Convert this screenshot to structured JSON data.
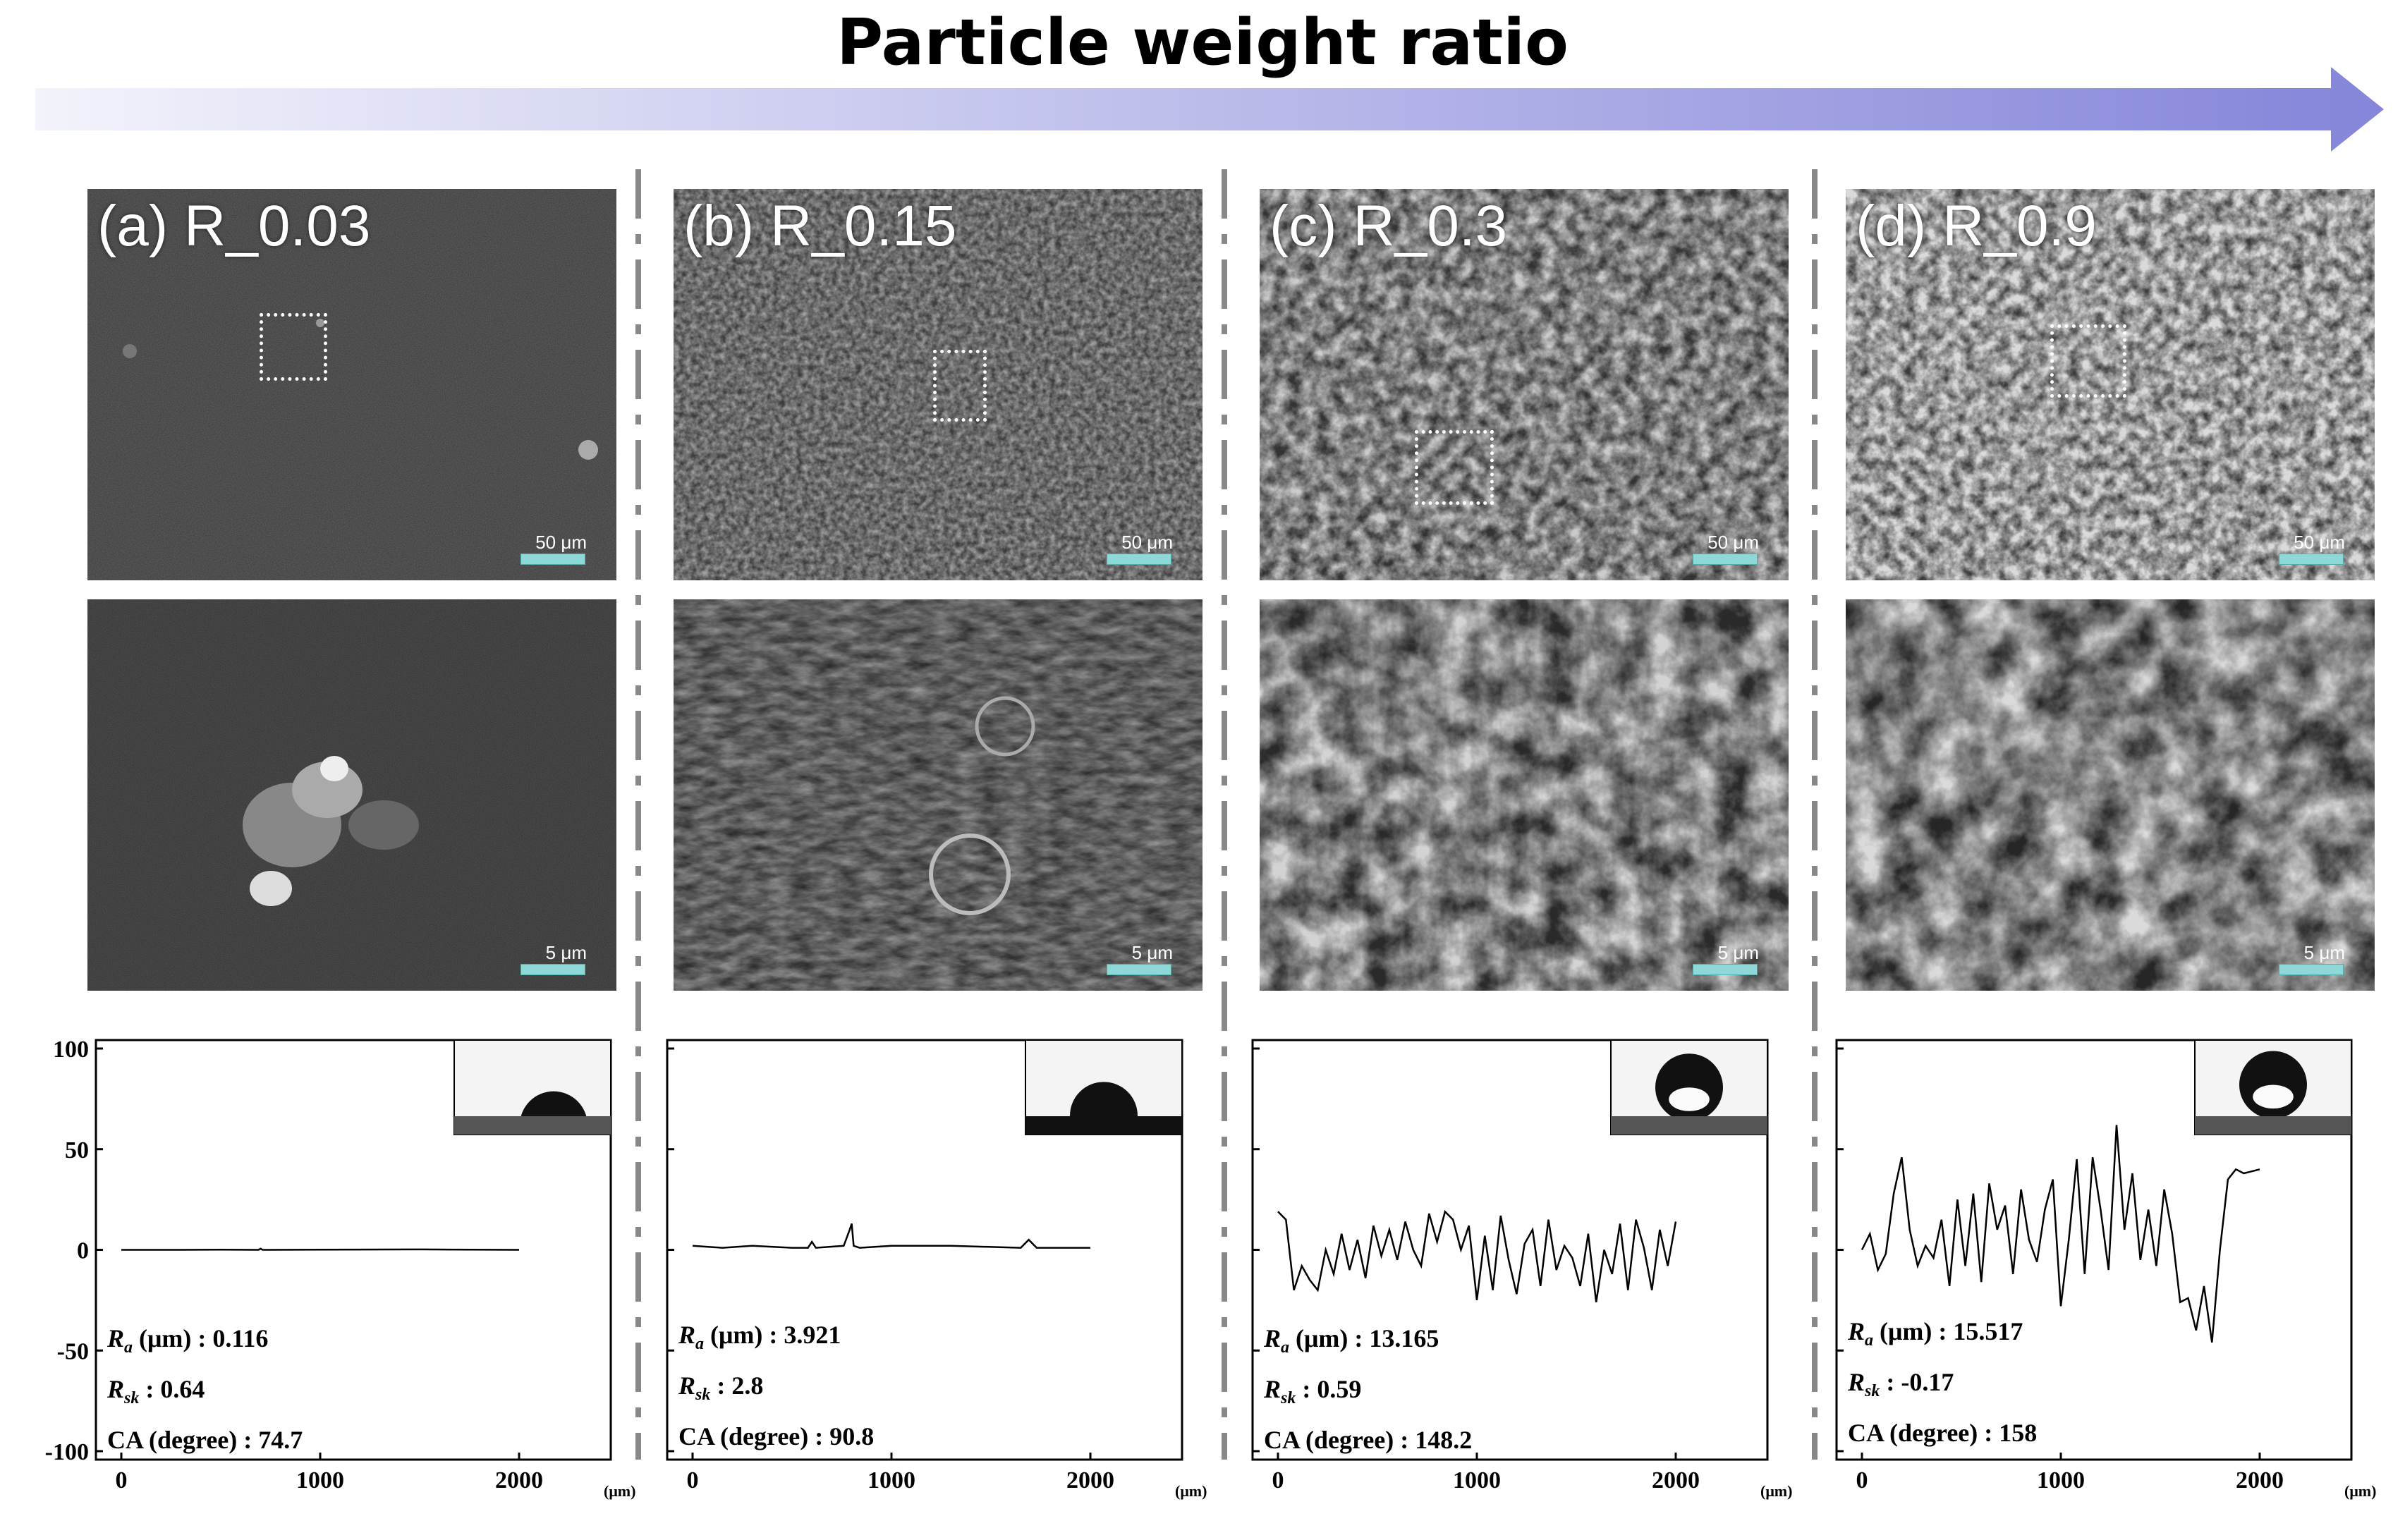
{
  "header": {
    "title": "Particle weight ratio"
  },
  "columns": [
    {
      "label": "(a) R_0.03",
      "scale_top": "50 μm",
      "scale_bottom": "5 μm",
      "ra": "0.116",
      "rsk": "0.64",
      "ca": "74.7"
    },
    {
      "label": "(b) R_0.15",
      "scale_top": "50 μm",
      "scale_bottom": "5 μm",
      "ra": "3.921",
      "rsk": "2.8",
      "ca": "90.8"
    },
    {
      "label": "(c) R_0.3",
      "scale_top": "50 μm",
      "scale_bottom": "5 μm",
      "ra": "13.165",
      "rsk": "0.59",
      "ca": "148.2"
    },
    {
      "label": "(d) R_0.9",
      "scale_top": "50 μm",
      "scale_bottom": "5 μm",
      "ra": "15.517",
      "rsk": "-0.17",
      "ca": "158"
    }
  ],
  "stats_labels": {
    "ra": "R",
    "ra_sub": "a",
    "ra_unit": " (μm) : ",
    "rsk": "R",
    "rsk_sub": "sk",
    "rsk_sep": " : ",
    "ca": "CA (degree) : "
  },
  "colors": {
    "arrow_start": "#eef0fb",
    "arrow_end": "#8888dd",
    "separator": "#888888",
    "scale_bar": "#8fd8d8"
  },
  "chart_data": [
    {
      "type": "line",
      "title": "",
      "xlabel": "",
      "ylabel": "",
      "x_unit": "(μm)",
      "xlim": [
        0,
        2000
      ],
      "ylim": [
        -100,
        100
      ],
      "xticks": [
        "0",
        "1000",
        "2000"
      ],
      "yticks": [
        "100",
        "50",
        "0",
        "-50",
        "-100"
      ],
      "series": [
        {
          "x": [
            0,
            250,
            500,
            690,
            700,
            710,
            1000,
            1500,
            2000
          ],
          "y": [
            0,
            0,
            0.1,
            0,
            0.6,
            0,
            0.1,
            0.2,
            0
          ]
        }
      ]
    },
    {
      "type": "line",
      "title": "",
      "xlabel": "",
      "ylabel": "",
      "x_unit": "(μm)",
      "xlim": [
        0,
        2000
      ],
      "ylim": [
        -100,
        100
      ],
      "xticks": [
        "0",
        "1000",
        "2000"
      ],
      "series": [
        {
          "x": [
            0,
            150,
            300,
            500,
            580,
            600,
            620,
            760,
            790,
            800,
            810,
            840,
            1000,
            1300,
            1650,
            1690,
            1730,
            2000
          ],
          "y": [
            2,
            1,
            2,
            1,
            1,
            4,
            1,
            2,
            10,
            13,
            2,
            1,
            2,
            2,
            1,
            5,
            1,
            1
          ]
        }
      ]
    },
    {
      "type": "line",
      "title": "",
      "xlabel": "",
      "ylabel": "",
      "x_unit": "(μm)",
      "xlim": [
        0,
        2000
      ],
      "ylim": [
        -100,
        100
      ],
      "xticks": [
        "0",
        "1000",
        "2000"
      ],
      "series": [
        {
          "x": [
            0,
            40,
            80,
            120,
            160,
            200,
            240,
            280,
            320,
            360,
            400,
            440,
            480,
            520,
            560,
            600,
            640,
            680,
            720,
            760,
            800,
            840,
            880,
            920,
            960,
            1000,
            1040,
            1080,
            1120,
            1160,
            1200,
            1240,
            1280,
            1320,
            1360,
            1400,
            1440,
            1480,
            1520,
            1560,
            1600,
            1640,
            1680,
            1720,
            1760,
            1800,
            1840,
            1880,
            1920,
            1960,
            2000
          ],
          "y": [
            19,
            15,
            -20,
            -8,
            -15,
            -20,
            0,
            -12,
            8,
            -10,
            5,
            -14,
            12,
            -3,
            10,
            -5,
            14,
            0,
            -8,
            18,
            4,
            19,
            15,
            0,
            12,
            -25,
            7,
            -20,
            17,
            -5,
            -22,
            3,
            10,
            -18,
            15,
            -10,
            2,
            -4,
            -18,
            8,
            -26,
            0,
            -12,
            13,
            -20,
            15,
            1,
            -20,
            10,
            -8,
            14
          ]
        }
      ]
    },
    {
      "type": "line",
      "title": "",
      "xlabel": "",
      "ylabel": "",
      "x_unit": "(μm)",
      "xlim": [
        0,
        2000
      ],
      "ylim": [
        -100,
        100
      ],
      "xticks": [
        "0",
        "1000",
        "2000"
      ],
      "series": [
        {
          "x": [
            0,
            40,
            80,
            120,
            160,
            200,
            240,
            280,
            320,
            360,
            400,
            440,
            480,
            520,
            560,
            600,
            640,
            680,
            720,
            760,
            800,
            840,
            880,
            920,
            960,
            1000,
            1040,
            1080,
            1120,
            1160,
            1200,
            1240,
            1280,
            1320,
            1360,
            1400,
            1440,
            1480,
            1520,
            1560,
            1600,
            1640,
            1680,
            1720,
            1760,
            1800,
            1840,
            1880,
            1920,
            1960,
            2000
          ],
          "y": [
            0,
            8,
            -10,
            -2,
            28,
            46,
            10,
            -8,
            2,
            -4,
            15,
            -18,
            25,
            -8,
            28,
            -16,
            33,
            10,
            22,
            -12,
            30,
            5,
            -6,
            20,
            35,
            -28,
            5,
            45,
            -12,
            46,
            20,
            -10,
            62,
            10,
            38,
            -5,
            20,
            -8,
            30,
            8,
            -26,
            -24,
            -40,
            -18,
            -46,
            0,
            35,
            40,
            38,
            39,
            40
          ]
        }
      ]
    }
  ]
}
